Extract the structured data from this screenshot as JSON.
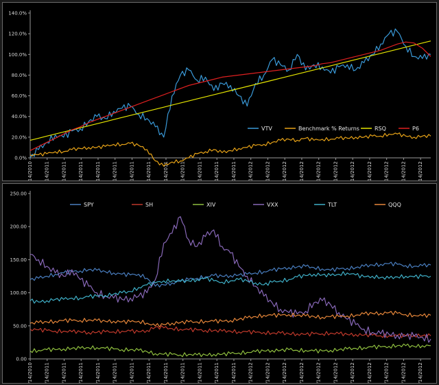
{
  "chart_data": [
    {
      "type": "line",
      "title": "",
      "xlabel": "",
      "ylabel": "",
      "ylim": [
        0,
        140
      ],
      "y_ticks": [
        "0.0%",
        "20.0%",
        "40.0%",
        "60.0%",
        "80.0%",
        "100.0%",
        "120.0%",
        "140.0%"
      ],
      "y_tick_values": [
        0,
        20,
        40,
        60,
        80,
        100,
        120,
        140
      ],
      "x_ticks": [
        "12/14/2010",
        "1/14/2011",
        "2/14/2011",
        "3/14/2011",
        "4/14/2011",
        "5/14/2011",
        "6/14/2011",
        "7/14/2011",
        "8/14/2011",
        "9/14/2011",
        "10/14/2011",
        "11/14/2011",
        "12/14/2011",
        "1/14/2012",
        "2/14/2012",
        "3/14/2012",
        "4/14/2012",
        "5/14/2012",
        "6/14/2012",
        "7/14/2012",
        "8/14/2012",
        "9/14/2012",
        "10/14/2012",
        "11/14/2012"
      ],
      "x_range": [
        "12/14/2010",
        "12/14/2012"
      ],
      "grid": false,
      "legend_position": "bottom-right",
      "series": [
        {
          "name": "VTV",
          "color": "#3a9ad9",
          "values": [
            0,
            8,
            15,
            22,
            20,
            26,
            28,
            35,
            40,
            38,
            45,
            48,
            50,
            42,
            38,
            30,
            20,
            60,
            80,
            85,
            75,
            78,
            65,
            72,
            70,
            60,
            50,
            72,
            80,
            95,
            90,
            85,
            100,
            85,
            90,
            88,
            82,
            88,
            90,
            85,
            92,
            100,
            110,
            120,
            122,
            108,
            98,
            96,
            100
          ]
        },
        {
          "name": "Benchmark % Returns",
          "color": "#e8a317",
          "values": [
            3,
            3,
            4,
            6,
            6,
            8,
            9,
            10,
            10,
            11,
            13,
            13,
            14,
            12,
            8,
            -3,
            -8,
            -4,
            -3,
            0,
            4,
            6,
            8,
            5,
            7,
            9,
            10,
            12,
            13,
            15,
            17,
            18,
            17,
            19,
            17,
            18,
            18,
            19,
            19,
            20,
            20,
            21,
            21,
            23,
            23,
            21,
            20,
            21,
            21
          ]
        },
        {
          "name": "RSQ",
          "color": "#e6e600",
          "values": [
            17,
            19,
            21,
            23,
            25,
            27,
            29,
            31,
            33,
            35,
            37,
            39,
            41,
            43,
            45,
            47,
            49,
            51,
            53,
            55,
            57,
            59,
            61,
            63,
            65,
            67,
            69,
            71,
            73,
            75,
            77,
            79,
            81,
            83,
            85,
            87,
            89,
            91,
            93,
            95,
            97,
            99,
            101,
            103,
            105,
            107,
            109,
            111,
            113
          ]
        },
        {
          "name": "P6",
          "color": "#e02020",
          "values": [
            7,
            11,
            15,
            19,
            23,
            27,
            30,
            34,
            37,
            40,
            43,
            46,
            49,
            52,
            55,
            58,
            61,
            64,
            67,
            70,
            72,
            74,
            76,
            78,
            79,
            80,
            81,
            82,
            83,
            84,
            85,
            86,
            87,
            88,
            89,
            91,
            92,
            94,
            96,
            98,
            100,
            102,
            104,
            107,
            110,
            112,
            111,
            106,
            98
          ]
        }
      ]
    },
    {
      "type": "line",
      "title": "",
      "xlabel": "",
      "ylabel": "",
      "ylim": [
        0,
        250
      ],
      "y_ticks": [
        "0.00",
        "50.00",
        "100.00",
        "150.00",
        "200.00",
        "250.00"
      ],
      "y_tick_values": [
        0,
        50,
        100,
        150,
        200,
        250
      ],
      "x_ticks": [
        "12/14/2010",
        "1/14/2011",
        "2/14/2011",
        "3/14/2011",
        "4/14/2011",
        "5/14/2011",
        "6/14/2011",
        "7/14/2011",
        "8/14/2011",
        "9/14/2011",
        "10/14/2011",
        "11/14/2011",
        "12/14/2011",
        "1/14/2012",
        "2/14/2012",
        "3/14/2012",
        "4/14/2012",
        "5/14/2012",
        "6/14/2012",
        "7/14/2012",
        "8/14/2012",
        "9/14/2012",
        "10/14/2012",
        "11/14/2012"
      ],
      "x_range": [
        "12/14/2010",
        "12/14/2012"
      ],
      "grid": false,
      "legend_position": "top",
      "series": [
        {
          "name": "SPY",
          "color": "#4a7fc1",
          "values": [
            120,
            122,
            125,
            128,
            130,
            132,
            133,
            135,
            134,
            132,
            130,
            128,
            127,
            128,
            122,
            110,
            112,
            115,
            118,
            120,
            122,
            124,
            126,
            125,
            126,
            127,
            128,
            130,
            132,
            134,
            136,
            138,
            139,
            140,
            138,
            136,
            134,
            136,
            137,
            138,
            140,
            142,
            143,
            144,
            143,
            141,
            140,
            141,
            142
          ]
        },
        {
          "name": "SH",
          "color": "#c0392b",
          "values": [
            45,
            44,
            43,
            42,
            42,
            41,
            41,
            40,
            40,
            41,
            41,
            42,
            42,
            41,
            43,
            48,
            47,
            46,
            45,
            44,
            44,
            43,
            43,
            42,
            42,
            41,
            41,
            40,
            40,
            39,
            39,
            38,
            38,
            37,
            38,
            38,
            39,
            38,
            37,
            37,
            36,
            36,
            35,
            35,
            35,
            35,
            36,
            35,
            35
          ]
        },
        {
          "name": "XIV",
          "color": "#8fbf3f",
          "values": [
            12,
            13,
            14,
            14,
            15,
            16,
            16,
            17,
            17,
            16,
            15,
            14,
            14,
            13,
            11,
            8,
            7,
            7,
            6,
            7,
            6,
            6,
            7,
            7,
            8,
            9,
            10,
            11,
            12,
            13,
            13,
            14,
            13,
            13,
            12,
            12,
            13,
            14,
            15,
            16,
            17,
            18,
            18,
            19,
            20,
            20,
            19,
            20,
            20
          ]
        },
        {
          "name": "VXX",
          "color": "#8868b8",
          "values": [
            158,
            150,
            140,
            130,
            125,
            135,
            120,
            110,
            100,
            95,
            92,
            90,
            92,
            95,
            100,
            120,
            175,
            190,
            215,
            180,
            170,
            185,
            195,
            170,
            160,
            140,
            125,
            110,
            95,
            85,
            75,
            70,
            68,
            72,
            85,
            88,
            82,
            70,
            60,
            52,
            45,
            40,
            38,
            37,
            36,
            35,
            34,
            33,
            30
          ]
        },
        {
          "name": "TLT",
          "color": "#3fb0c8",
          "values": [
            88,
            86,
            88,
            90,
            90,
            92,
            92,
            94,
            95,
            96,
            98,
            100,
            102,
            108,
            112,
            115,
            118,
            118,
            117,
            118,
            120,
            122,
            118,
            116,
            118,
            120,
            118,
            115,
            112,
            116,
            118,
            120,
            124,
            126,
            128,
            127,
            126,
            128,
            130,
            127,
            124,
            125,
            123,
            122,
            124,
            125,
            124,
            125,
            125
          ]
        },
        {
          "name": "QQQ",
          "color": "#e8873a",
          "values": [
            54,
            55,
            56,
            57,
            58,
            58,
            58,
            59,
            58,
            57,
            57,
            56,
            56,
            57,
            54,
            50,
            52,
            54,
            55,
            56,
            56,
            57,
            57,
            57,
            58,
            60,
            62,
            64,
            66,
            66,
            66,
            67,
            66,
            65,
            64,
            63,
            64,
            64,
            65,
            66,
            68,
            69,
            69,
            70,
            69,
            67,
            66,
            65,
            66
          ]
        }
      ]
    }
  ]
}
